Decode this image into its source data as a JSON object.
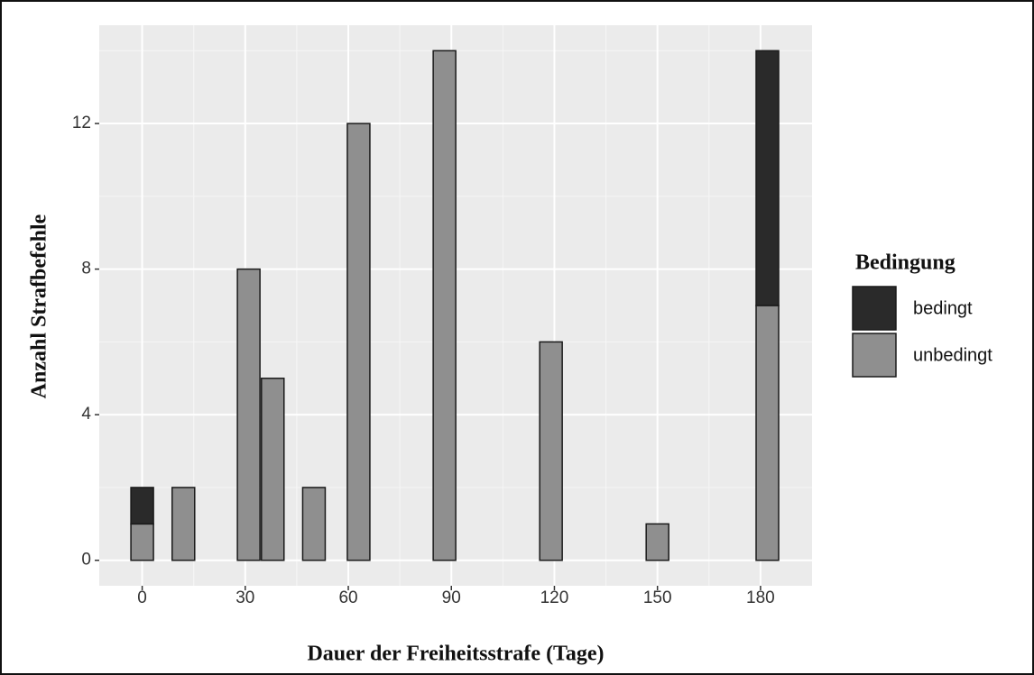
{
  "chart_data": {
    "type": "bar",
    "stacked": true,
    "x_label": "Dauer der Freiheitsstrafe (Tage)",
    "y_label": "Anzahl Strafbefehle",
    "legend_title": "Bedingung",
    "x": [
      0,
      12,
      31,
      38,
      50,
      63,
      88,
      119,
      150,
      182
    ],
    "series": [
      {
        "name": "bedingt",
        "color": "#2a2a2a",
        "values": [
          1,
          0,
          0,
          0,
          0,
          0,
          0,
          0,
          0,
          7
        ]
      },
      {
        "name": "unbedingt",
        "color": "#8f8f8f",
        "values": [
          1,
          2,
          8,
          5,
          2,
          12,
          14,
          6,
          1,
          7
        ]
      }
    ],
    "xlim": [
      -12.5,
      195
    ],
    "xticks": [
      0,
      30,
      60,
      90,
      120,
      150,
      180
    ],
    "ylim": [
      -0.7,
      14.7
    ],
    "yticks": [
      0,
      4,
      8,
      12
    ],
    "grid": true,
    "legend": "right"
  }
}
